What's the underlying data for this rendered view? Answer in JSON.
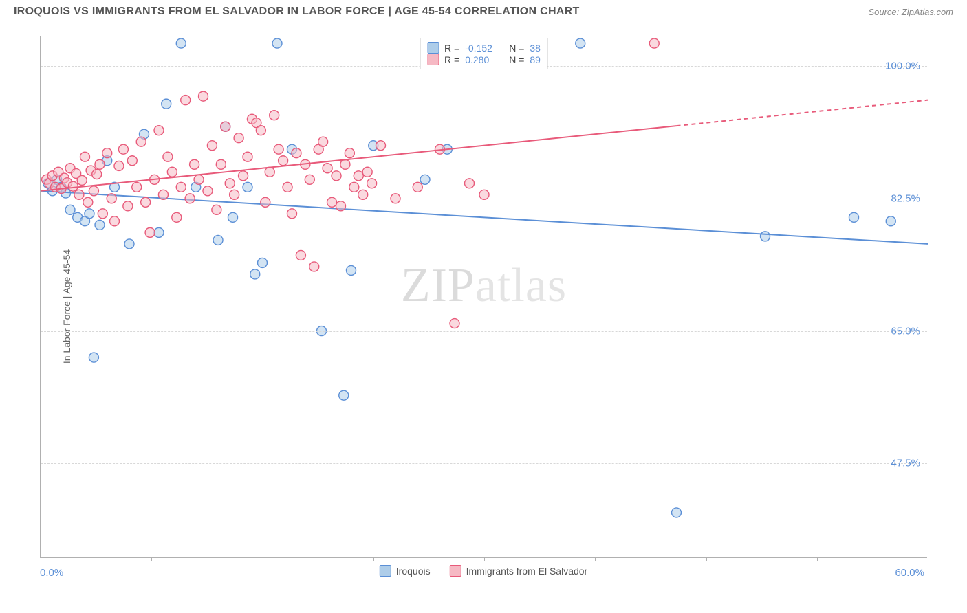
{
  "header": {
    "title": "IROQUOIS VS IMMIGRANTS FROM EL SALVADOR IN LABOR FORCE | AGE 45-54 CORRELATION CHART",
    "source": "Source: ZipAtlas.com"
  },
  "chart": {
    "type": "scatter",
    "ylabel": "In Labor Force | Age 45-54",
    "xlim": [
      0,
      60
    ],
    "ylim": [
      35,
      104
    ],
    "xtick_positions": [
      0,
      7.5,
      15,
      22.5,
      30,
      37.5,
      45,
      52.5,
      60
    ],
    "xlabel_min": "0.0%",
    "xlabel_max": "60.0%",
    "yticks": [
      {
        "v": 47.5,
        "label": "47.5%"
      },
      {
        "v": 65.0,
        "label": "65.0%"
      },
      {
        "v": 82.5,
        "label": "82.5%"
      },
      {
        "v": 100.0,
        "label": "100.0%"
      }
    ],
    "background_color": "#ffffff",
    "grid_color": "#d8d8d8",
    "axis_tick_color": "#5b8fd6",
    "marker_radius": 7,
    "marker_stroke_width": 1.4,
    "trendline_width": 2,
    "series": [
      {
        "name": "Iroquois",
        "fill": "#aecde9",
        "fill_opacity": 0.55,
        "stroke": "#5b8fd6",
        "points": [
          [
            0.5,
            84.5
          ],
          [
            0.8,
            83.5
          ],
          [
            1.1,
            85.0
          ],
          [
            1.4,
            84.0
          ],
          [
            1.7,
            83.2
          ],
          [
            2.0,
            81.0
          ],
          [
            2.5,
            80.0
          ],
          [
            3.0,
            79.5
          ],
          [
            3.3,
            80.5
          ],
          [
            3.6,
            61.5
          ],
          [
            4.0,
            79.0
          ],
          [
            4.5,
            87.5
          ],
          [
            5.0,
            84.0
          ],
          [
            6.0,
            76.5
          ],
          [
            7.0,
            91.0
          ],
          [
            8.0,
            78.0
          ],
          [
            8.5,
            95.0
          ],
          [
            9.5,
            103.0
          ],
          [
            10.5,
            84.0
          ],
          [
            12.0,
            77.0
          ],
          [
            12.5,
            92.0
          ],
          [
            13.0,
            80.0
          ],
          [
            14.0,
            84.0
          ],
          [
            14.5,
            72.5
          ],
          [
            15.0,
            74.0
          ],
          [
            16.0,
            103.0
          ],
          [
            17.0,
            89.0
          ],
          [
            19.0,
            65.0
          ],
          [
            20.5,
            56.5
          ],
          [
            21.0,
            73.0
          ],
          [
            22.5,
            89.5
          ],
          [
            26.0,
            85.0
          ],
          [
            27.5,
            89.0
          ],
          [
            36.5,
            103.0
          ],
          [
            43.0,
            41.0
          ],
          [
            49.0,
            77.5
          ],
          [
            55.0,
            80.0
          ],
          [
            57.5,
            79.5
          ]
        ],
        "trend": {
          "y_at_xmin": 83.5,
          "y_at_xmax": 76.5,
          "x_solid_end": 60
        }
      },
      {
        "name": "Immigrants from El Salvador",
        "fill": "#f6b9c4",
        "fill_opacity": 0.55,
        "stroke": "#e85a7a",
        "points": [
          [
            0.4,
            85.0
          ],
          [
            0.6,
            84.5
          ],
          [
            0.8,
            85.5
          ],
          [
            1.0,
            84.0
          ],
          [
            1.2,
            86.0
          ],
          [
            1.4,
            83.8
          ],
          [
            1.6,
            85.2
          ],
          [
            1.8,
            84.6
          ],
          [
            2.0,
            86.5
          ],
          [
            2.2,
            84.1
          ],
          [
            2.4,
            85.8
          ],
          [
            2.6,
            83.0
          ],
          [
            2.8,
            84.9
          ],
          [
            3.0,
            88.0
          ],
          [
            3.2,
            82.0
          ],
          [
            3.4,
            86.2
          ],
          [
            3.6,
            83.5
          ],
          [
            3.8,
            85.7
          ],
          [
            4.0,
            87.0
          ],
          [
            4.2,
            80.5
          ],
          [
            4.5,
            88.5
          ],
          [
            4.8,
            82.5
          ],
          [
            5.0,
            79.5
          ],
          [
            5.3,
            86.8
          ],
          [
            5.6,
            89.0
          ],
          [
            5.9,
            81.5
          ],
          [
            6.2,
            87.5
          ],
          [
            6.5,
            84.0
          ],
          [
            6.8,
            90.0
          ],
          [
            7.1,
            82.0
          ],
          [
            7.4,
            78.0
          ],
          [
            7.7,
            85.0
          ],
          [
            8.0,
            91.5
          ],
          [
            8.3,
            83.0
          ],
          [
            8.6,
            88.0
          ],
          [
            8.9,
            86.0
          ],
          [
            9.2,
            80.0
          ],
          [
            9.5,
            84.0
          ],
          [
            9.8,
            95.5
          ],
          [
            10.1,
            82.5
          ],
          [
            10.4,
            87.0
          ],
          [
            10.7,
            85.0
          ],
          [
            11.0,
            96.0
          ],
          [
            11.3,
            83.5
          ],
          [
            11.6,
            89.5
          ],
          [
            11.9,
            81.0
          ],
          [
            12.2,
            87.0
          ],
          [
            12.5,
            92.0
          ],
          [
            12.8,
            84.5
          ],
          [
            13.1,
            83.0
          ],
          [
            13.4,
            90.5
          ],
          [
            13.7,
            85.5
          ],
          [
            14.0,
            88.0
          ],
          [
            14.3,
            93.0
          ],
          [
            14.6,
            92.5
          ],
          [
            14.9,
            91.5
          ],
          [
            15.2,
            82.0
          ],
          [
            15.5,
            86.0
          ],
          [
            15.8,
            93.5
          ],
          [
            16.1,
            89.0
          ],
          [
            16.4,
            87.5
          ],
          [
            16.7,
            84.0
          ],
          [
            17.0,
            80.5
          ],
          [
            17.3,
            88.5
          ],
          [
            17.6,
            75.0
          ],
          [
            17.9,
            87.0
          ],
          [
            18.2,
            85.0
          ],
          [
            18.5,
            73.5
          ],
          [
            18.8,
            89.0
          ],
          [
            19.1,
            90.0
          ],
          [
            19.4,
            86.5
          ],
          [
            19.7,
            82.0
          ],
          [
            20.0,
            85.5
          ],
          [
            20.3,
            81.5
          ],
          [
            20.6,
            87.0
          ],
          [
            20.9,
            88.5
          ],
          [
            21.2,
            84.0
          ],
          [
            21.5,
            85.5
          ],
          [
            21.8,
            83.0
          ],
          [
            22.1,
            86.0
          ],
          [
            22.4,
            84.5
          ],
          [
            23.0,
            89.5
          ],
          [
            24.0,
            82.5
          ],
          [
            25.5,
            84.0
          ],
          [
            27.0,
            89.0
          ],
          [
            28.0,
            66.0
          ],
          [
            29.0,
            84.5
          ],
          [
            30.0,
            83.0
          ],
          [
            41.5,
            103.0
          ]
        ],
        "trend": {
          "y_at_xmin": 83.5,
          "y_at_xmax": 95.5,
          "x_solid_end": 43
        }
      }
    ],
    "top_legend": [
      {
        "swatch_fill": "#aecde9",
        "swatch_stroke": "#5b8fd6",
        "r": "-0.152",
        "n": "38"
      },
      {
        "swatch_fill": "#f6b9c4",
        "swatch_stroke": "#e85a7a",
        "r": "0.280",
        "n": "89"
      }
    ],
    "bottom_legend": [
      {
        "swatch_fill": "#aecde9",
        "swatch_stroke": "#5b8fd6",
        "label": "Iroquois"
      },
      {
        "swatch_fill": "#f6b9c4",
        "swatch_stroke": "#e85a7a",
        "label": "Immigrants from El Salvador"
      }
    ],
    "watermark": {
      "part1": "ZIP",
      "part2": "atlas"
    }
  }
}
